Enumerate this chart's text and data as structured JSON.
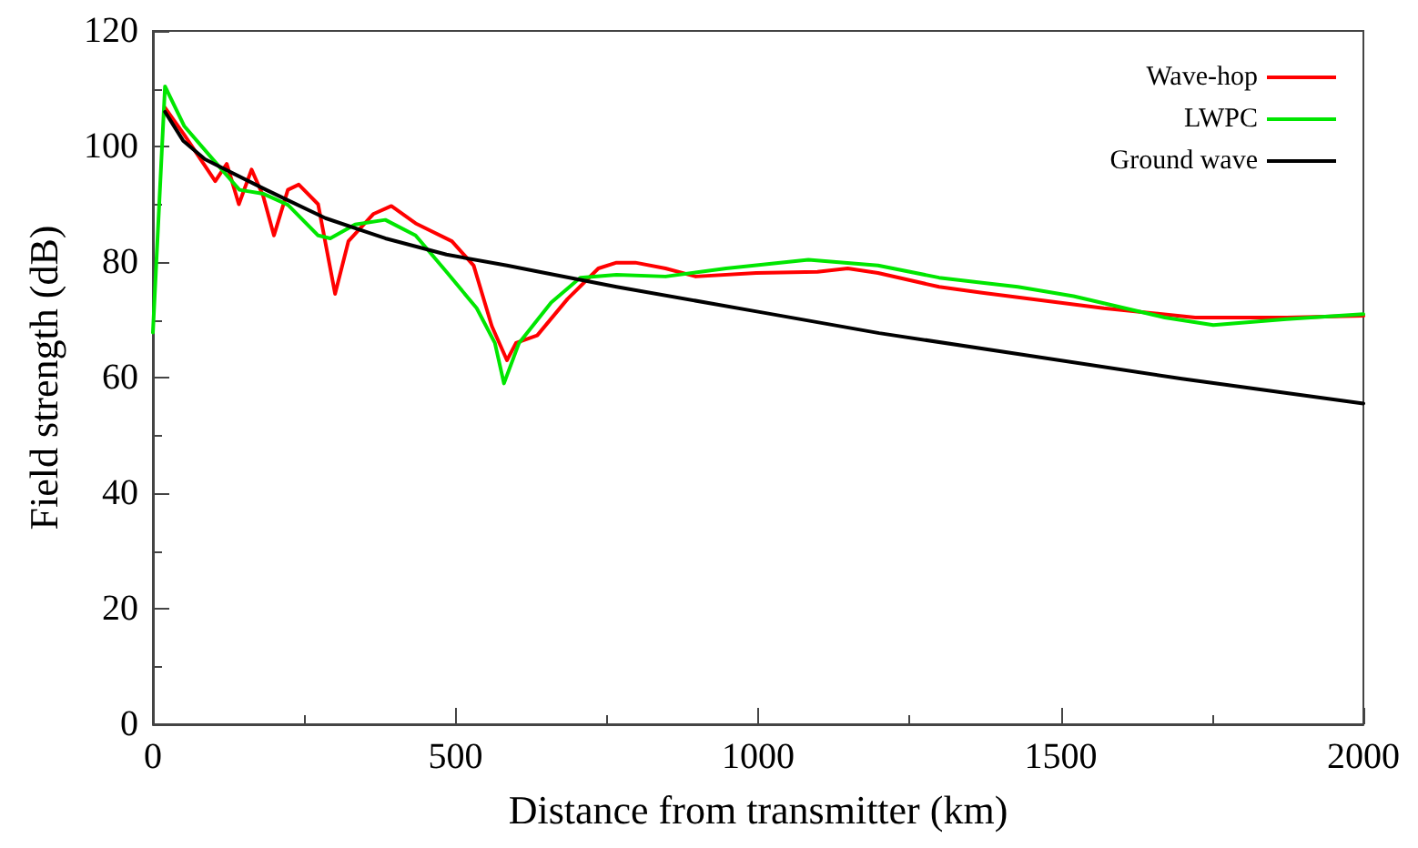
{
  "chart_data": {
    "type": "line",
    "xlabel": "Distance from transmitter (km)",
    "ylabel": "Field strength (dB)",
    "xlim": [
      0,
      2000
    ],
    "xticks": [
      0,
      500,
      1000,
      1500,
      2000
    ],
    "ylim": [
      0,
      120
    ],
    "yticks": [
      0,
      20,
      40,
      60,
      80,
      100,
      120
    ],
    "grid": false,
    "legend": "top right",
    "marker": "none",
    "line_style": "solid",
    "series": [
      {
        "name": "Wave-hop",
        "color": "#ff0000",
        "x": [
          20,
          52,
          103,
          122,
          142,
          163,
          182,
          200,
          223,
          241,
          273,
          301,
          323,
          364,
          394,
          434,
          494,
          530,
          560,
          585,
          600,
          635,
          685,
          736,
          766,
          797,
          847,
          897,
          997,
          1098,
          1148,
          1198,
          1299,
          1370,
          1429,
          1571,
          1722,
          1873,
          2000
        ],
        "values": [
          106.7,
          102,
          94,
          97,
          90,
          96,
          91.5,
          84.6,
          92.5,
          93.4,
          90,
          74.5,
          83.6,
          88.3,
          89.7,
          86.7,
          83.6,
          79.4,
          68.9,
          63,
          66,
          67.3,
          73.6,
          78.9,
          79.9,
          79.9,
          78.9,
          77.5,
          78.1,
          78.3,
          78.9,
          78.1,
          75.7,
          74.7,
          73.9,
          72,
          70.4,
          70.4,
          70.7
        ]
      },
      {
        "name": "LWPC",
        "color": "#00e600",
        "x": [
          0,
          20,
          52,
          103,
          143,
          183,
          223,
          273,
          293,
          334,
          384,
          434,
          485,
          535,
          565,
          580,
          605,
          658,
          706,
          766,
          847,
          947,
          1083,
          1198,
          1299,
          1370,
          1429,
          1521,
          1672,
          1752,
          1873,
          2000
        ],
        "values": [
          67.8,
          110.4,
          103.5,
          97.3,
          92.5,
          91.8,
          89.9,
          84.6,
          84.1,
          86.5,
          87.3,
          84.6,
          78.3,
          72,
          66,
          59,
          66,
          73,
          77.3,
          77.8,
          77.5,
          78.9,
          80.4,
          79.4,
          77.3,
          76.4,
          75.7,
          74.1,
          70.4,
          69.1,
          70.1,
          71
        ]
      },
      {
        "name": "Ground wave",
        "color": "#000000",
        "x": [
          20,
          50,
          86,
          187,
          285,
          384,
          485,
          585,
          648,
          766,
          1000,
          1200,
          1429,
          1700,
          2000
        ],
        "values": [
          106,
          101,
          97.8,
          92.5,
          87.6,
          84.1,
          81.3,
          79.4,
          78.1,
          75.7,
          71.4,
          67.7,
          64.1,
          59.8,
          55.5
        ]
      }
    ]
  }
}
